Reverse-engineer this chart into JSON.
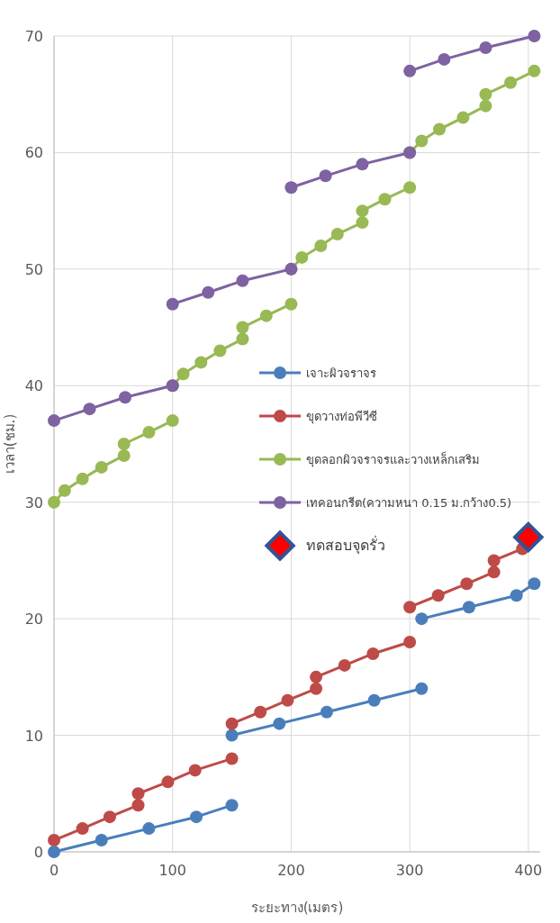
{
  "chart_data": {
    "type": "line",
    "xlabel": "ระยะทาง(เมตร)",
    "ylabel": "เวลา(ชม.)",
    "xlim": [
      0,
      410
    ],
    "ylim": [
      0,
      70
    ],
    "xticks": [
      0,
      100,
      200,
      300,
      400
    ],
    "yticks": [
      0,
      10,
      20,
      30,
      40,
      50,
      60,
      70
    ],
    "grid": true,
    "legend": "right",
    "marker": "circle",
    "series": [
      {
        "name": "เจาะผิวจราจร",
        "color": "#4a7ebb",
        "x": [
          0,
          40,
          80,
          120,
          150,
          null,
          150,
          190,
          230,
          270,
          310,
          null,
          310,
          350,
          390,
          405
        ],
        "values": [
          0,
          1,
          2,
          3,
          4,
          null,
          10,
          11,
          12,
          13,
          14,
          null,
          20,
          21,
          22,
          23
        ]
      },
      {
        "name": "ขุดวางท่อพีวีซี",
        "color": "#be4b48",
        "x": [
          0,
          24,
          47,
          71,
          71,
          96,
          119,
          150,
          null,
          150,
          174,
          197,
          221,
          221,
          245,
          269,
          300,
          null,
          300,
          324,
          348,
          371,
          371,
          395
        ],
        "values": [
          1,
          2,
          3,
          4,
          5,
          6,
          7,
          8,
          null,
          11,
          12,
          13,
          14,
          15,
          16,
          17,
          18,
          null,
          21,
          22,
          23,
          24,
          25,
          26
        ]
      },
      {
        "name": "ขุดลอกผิวจราจรและวางเหล็กเสริม",
        "color": "#98b954",
        "x": [
          0,
          9,
          24,
          40,
          59,
          59,
          80,
          100,
          null,
          100,
          109,
          124,
          140,
          159,
          159,
          179,
          200,
          null,
          200,
          209,
          225,
          239,
          260,
          260,
          279,
          300,
          null,
          300,
          310,
          325,
          345,
          364,
          364,
          385,
          405
        ],
        "values": [
          30,
          31,
          32,
          33,
          34,
          35,
          36,
          37,
          null,
          40,
          41,
          42,
          43,
          44,
          45,
          46,
          47,
          null,
          50,
          51,
          52,
          53,
          54,
          55,
          56,
          57,
          null,
          60,
          61,
          62,
          63,
          64,
          65,
          66,
          67
        ]
      },
      {
        "name": "เทคอนกรีต(ความหนา 0.15 ม.กว้าง0.5)",
        "color": "#7e62a1",
        "x": [
          0,
          30,
          60,
          100,
          null,
          100,
          130,
          159,
          200,
          null,
          200,
          229,
          260,
          300,
          null,
          300,
          329,
          364,
          405
        ],
        "values": [
          37,
          38,
          39,
          40,
          null,
          47,
          48,
          49,
          50,
          null,
          57,
          58,
          59,
          60,
          null,
          67,
          68,
          69,
          70
        ]
      },
      {
        "name": "ทดสอบจุดรั่ว",
        "type": "scatter",
        "marker": "diamond",
        "color": "#ff0000",
        "x": [
          400
        ],
        "values": [
          27
        ]
      }
    ]
  }
}
